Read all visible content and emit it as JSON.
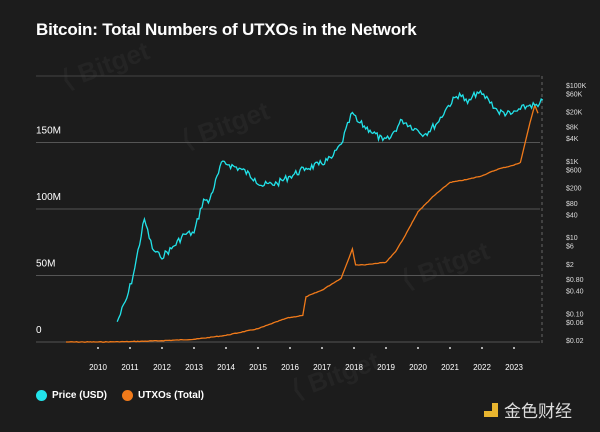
{
  "title": "Bitcoin: Total Numbers of UTXOs in the Network",
  "watermark_text": "Bitget",
  "logo_text": "金色财经",
  "colors": {
    "price": "#22e3ea",
    "utxo": "#f07a1a",
    "grid": "#555555",
    "text": "#ffffff"
  },
  "chart_data": {
    "type": "line",
    "title": "Bitcoin: Total Numbers of UTXOs in the Network",
    "x_ticks": [
      "2010",
      "2011",
      "2012",
      "2013",
      "2014",
      "2015",
      "2016",
      "2017",
      "2018",
      "2019",
      "2020",
      "2021",
      "2022",
      "2023"
    ],
    "xlim": [
      2009.0,
      2024.3
    ],
    "left_axis": {
      "ticks": [
        "0",
        "50M",
        "100M",
        "150M"
      ],
      "tick_values": [
        0,
        50,
        100,
        150
      ],
      "ylim": [
        0,
        200
      ],
      "unit": "millions"
    },
    "right_axis": {
      "scale": "log",
      "ticks": [
        "$100K",
        "$60K",
        "$20K",
        "$8K",
        "$4K",
        "$1K",
        "$600",
        "$200",
        "$80",
        "$40",
        "$10",
        "$6",
        "$2",
        "$0.80",
        "$0.40",
        "$0.10",
        "$0.06",
        "$0.02"
      ],
      "tick_values": [
        100000,
        60000,
        20000,
        8000,
        4000,
        1000,
        600,
        200,
        80,
        40,
        10,
        6,
        2,
        0.8,
        0.4,
        0.1,
        0.06,
        0.02
      ]
    },
    "legend": "bottom-left",
    "series": [
      {
        "name": "Price (USD)",
        "axis": "right",
        "x": [
          2010.6,
          2010.9,
          2011.1,
          2011.45,
          2011.7,
          2011.95,
          2012.3,
          2012.7,
          2013.0,
          2013.3,
          2013.45,
          2013.9,
          2014.1,
          2014.5,
          2014.9,
          2015.1,
          2015.6,
          2016.0,
          2016.5,
          2016.9,
          2017.3,
          2017.6,
          2017.95,
          2018.1,
          2018.5,
          2018.9,
          2019.1,
          2019.5,
          2019.9,
          2020.2,
          2020.6,
          2020.95,
          2021.3,
          2021.55,
          2021.85,
          2022.2,
          2022.5,
          2022.9,
          2023.2,
          2023.5,
          2023.75,
          2023.9
        ],
        "y": [
          0.06,
          0.25,
          1,
          30,
          5,
          3,
          5,
          12,
          13,
          100,
          80,
          1000,
          800,
          600,
          350,
          230,
          260,
          400,
          650,
          800,
          1200,
          2800,
          19000,
          11000,
          6500,
          3500,
          3800,
          12000,
          7200,
          5000,
          10000,
          29000,
          60000,
          33000,
          65000,
          42000,
          20000,
          17000,
          23000,
          30000,
          27000,
          40000
        ]
      },
      {
        "name": "UTXOs (Total)",
        "axis": "left",
        "x": [
          2009.0,
          2010.0,
          2011.0,
          2012.0,
          2013.0,
          2014.0,
          2015.0,
          2015.9,
          2016.4,
          2016.5,
          2017.0,
          2017.6,
          2017.95,
          2018.05,
          2018.3,
          2019.0,
          2019.3,
          2019.6,
          2020.0,
          2020.5,
          2021.0,
          2021.5,
          2022.0,
          2022.5,
          2023.0,
          2023.2,
          2023.35,
          2023.5,
          2023.65,
          2023.75
        ],
        "y": [
          0,
          0,
          0.3,
          1,
          2,
          5,
          10,
          18,
          20,
          34,
          39,
          48,
          70,
          58,
          58,
          60,
          68,
          80,
          98,
          110,
          120,
          122,
          125,
          130,
          133,
          135,
          150,
          165,
          178,
          172
        ]
      }
    ]
  }
}
